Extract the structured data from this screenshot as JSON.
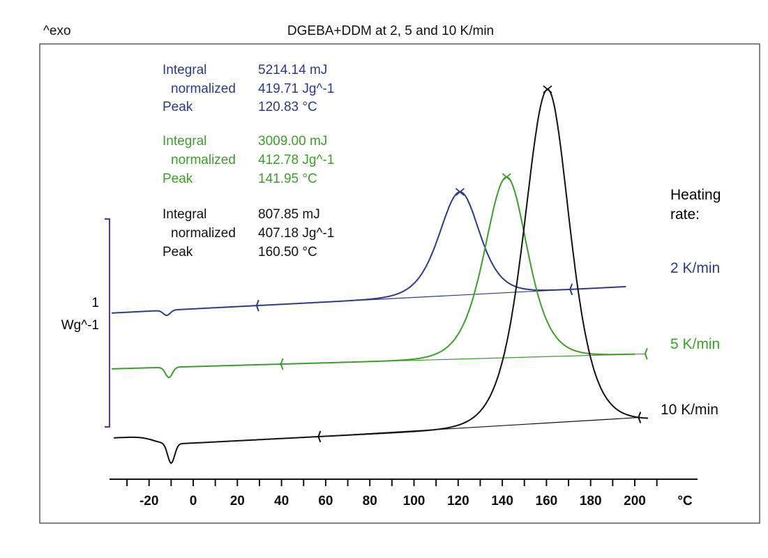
{
  "header": {
    "exo_label": "^exo",
    "title": "DGEBA+DDM at 2, 5 and 10 K/min"
  },
  "scale_bar": {
    "value": "1",
    "unit": "Wg^-1"
  },
  "legend": {
    "title_line1": "Heating",
    "title_line2": "rate:"
  },
  "results": [
    {
      "color": "#2e3a86",
      "integral_label": "Integral",
      "integral_value": "5214.14 mJ",
      "normalized_label": "normalized",
      "normalized_value": "419.71 Jg^-1",
      "peak_label": "Peak",
      "peak_value": "120.83 °C"
    },
    {
      "color": "#3f9b2e",
      "integral_label": "Integral",
      "integral_value": "3009.00 mJ",
      "normalized_label": "normalized",
      "normalized_value": "412.78 Jg^-1",
      "peak_label": "Peak",
      "peak_value": "141.95 °C"
    },
    {
      "color": "#111111",
      "integral_label": "Integral",
      "integral_value": "807.85 mJ",
      "normalized_label": "normalized",
      "normalized_value": "407.18 Jg^-1",
      "peak_label": "Peak",
      "peak_value": "160.50 °C"
    }
  ],
  "chart_data": {
    "type": "line",
    "title": "DGEBA+DDM at 2, 5 and 10 K/min",
    "xlabel": "°C",
    "ylabel": "^exo",
    "xlim": [
      -38,
      212
    ],
    "x_ticks": [
      -20,
      0,
      20,
      40,
      60,
      80,
      100,
      120,
      140,
      160,
      180,
      200
    ],
    "x_unit_label": "°C",
    "y_scale_bar": "1 Wg^-1",
    "grid": false,
    "legend_position": "right",
    "series": [
      {
        "name": "2 K/min",
        "color": "#2e3a86",
        "baseline_offset": 0,
        "peak_temp": 120.83,
        "peak_height": 1.0,
        "width_left": 17,
        "width_right": 16,
        "dip_temp": -12,
        "dip_depth": 0.05,
        "drift": 0.0011,
        "x_start": -37,
        "x_end": 196,
        "integration_limits": [
          29,
          171
        ]
      },
      {
        "name": "5 K/min",
        "color": "#3f9b2e",
        "baseline_offset": -0.54,
        "peak_temp": 141.95,
        "peak_height": 1.75,
        "width_left": 18,
        "width_right": 17,
        "dip_temp": -11,
        "dip_depth": 0.1,
        "drift": 0.0006,
        "x_start": -37,
        "x_end": 200,
        "integration_limits": [
          40,
          205
        ]
      },
      {
        "name": "10 K/min",
        "color": "#111111",
        "baseline_offset": -1.3,
        "peak_temp": 160.5,
        "peak_height": 3.25,
        "width_left": 19,
        "width_right": 18,
        "dip_temp": -10,
        "dip_depth": 0.19,
        "drift": 0.0011,
        "x_start": -36,
        "x_end": 206,
        "integration_limits": [
          57,
          202
        ]
      }
    ]
  }
}
